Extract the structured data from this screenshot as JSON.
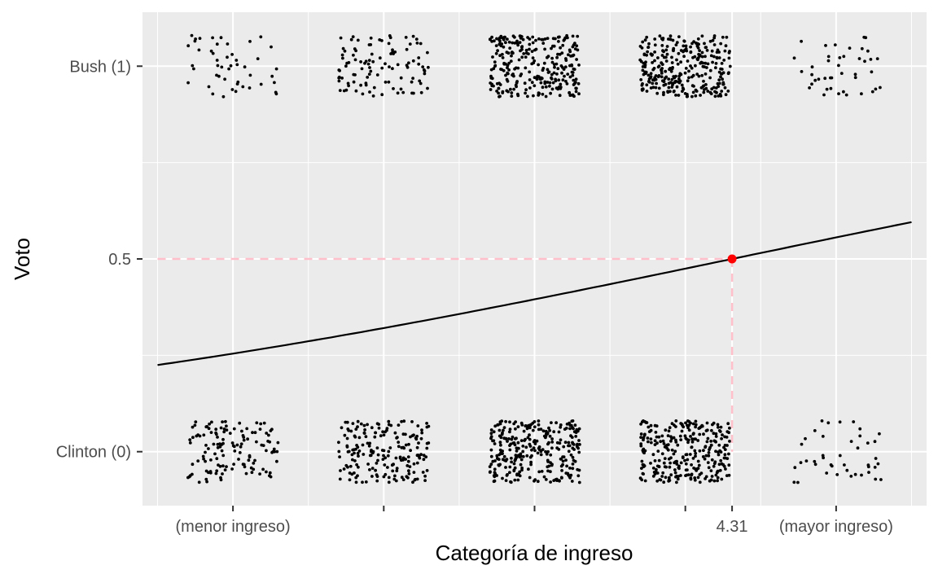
{
  "chart_data": {
    "type": "scatter",
    "title": "",
    "xlabel": "Categoría de ingreso",
    "ylabel": "Voto",
    "xlim": [
      0.4,
      5.6
    ],
    "ylim": [
      -0.14,
      1.14
    ],
    "x_ticks": [
      1,
      2,
      3,
      4,
      4.31,
      5
    ],
    "x_tick_labels": [
      "(menor ingreso)",
      "",
      "",
      "",
      "4.31",
      "(mayor ingreso)"
    ],
    "x_minor_grid": [
      0.5,
      1.5,
      2.5,
      3.5,
      4.5,
      5.5
    ],
    "y_ticks": [
      0,
      0.5,
      1
    ],
    "y_tick_labels": [
      "Clinton (0)",
      "0.5",
      "Bush (1)"
    ],
    "y_minor_grid": [
      0.25,
      0.75
    ],
    "grid": true,
    "background": "#ebebeb",
    "jitter_series": {
      "name": "",
      "color": "#000000",
      "jitter_width": 0.3,
      "jitter_height": 0.08,
      "groups": [
        {
          "x": 1,
          "y": 0,
          "count": 130
        },
        {
          "x": 2,
          "y": 0,
          "count": 190
        },
        {
          "x": 3,
          "y": 0,
          "count": 300
        },
        {
          "x": 4,
          "y": 0,
          "count": 290
        },
        {
          "x": 5,
          "y": 0,
          "count": 42
        },
        {
          "x": 1,
          "y": 1,
          "count": 48
        },
        {
          "x": 2,
          "y": 1,
          "count": 105
        },
        {
          "x": 3,
          "y": 1,
          "count": 280
        },
        {
          "x": 4,
          "y": 1,
          "count": 300
        },
        {
          "x": 5,
          "y": 1,
          "count": 42
        }
      ]
    },
    "fitted_curve": {
      "type": "logistic",
      "name": "",
      "color": "#000000",
      "intercept": -1.4,
      "slope": 0.3248,
      "x_range": [
        0.5,
        5.5
      ]
    },
    "highlight": {
      "x": 4.31,
      "y": 0.5,
      "point_color": "#ff0000",
      "guide_color": "#ffc0cb"
    }
  }
}
